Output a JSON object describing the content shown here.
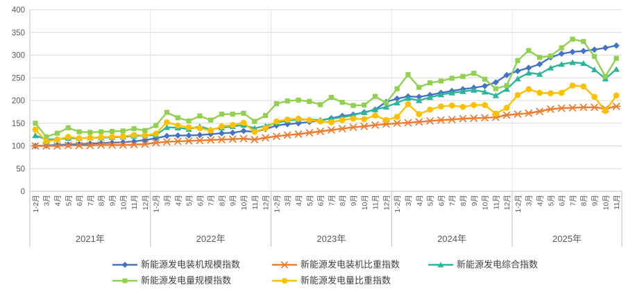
{
  "chart_data": {
    "type": "line",
    "title": "",
    "y_axis": {
      "min": 0,
      "max": 400,
      "step": 50,
      "ticks": [
        0,
        50,
        100,
        150,
        200,
        250,
        300,
        350,
        400
      ]
    },
    "x_axis": {
      "month_labels": [
        "1-2月",
        "3月",
        "4月",
        "5月",
        "6月",
        "7月",
        "8月",
        "9月",
        "10月",
        "11月",
        "12月",
        "1-2月",
        "3月",
        "4月",
        "5月",
        "6月",
        "7月",
        "8月",
        "9月",
        "10月",
        "11月",
        "12月",
        "1-2月",
        "3月",
        "4月",
        "5月",
        "6月",
        "7月",
        "8月",
        "9月",
        "10月",
        "11月",
        "12月",
        "1-2月",
        "3月",
        "4月",
        "5月",
        "6月",
        "7月",
        "8月",
        "9月",
        "10月",
        "11月",
        "12月",
        "1-2月",
        "3月",
        "4月",
        "5月",
        "6月",
        "7月",
        "8月",
        "9月",
        "10月",
        "11月"
      ],
      "year_groups": [
        {
          "label": "2021年",
          "months": 11
        },
        {
          "label": "2022年",
          "months": 11
        },
        {
          "label": "2023年",
          "months": 11
        },
        {
          "label": "2024年",
          "months": 11
        },
        {
          "label": "2025年",
          "months": 10
        }
      ]
    },
    "series": [
      {
        "name": "新能源发电装机规模指数",
        "color": "#4472C4",
        "marker": "diamond",
        "values": [
          100,
          101,
          102,
          103,
          104,
          105,
          106,
          107,
          108,
          110,
          113,
          117,
          122,
          123,
          123,
          124,
          126,
          128,
          129,
          133,
          131,
          137,
          145,
          148,
          150,
          153,
          156,
          161,
          166,
          169,
          174,
          180,
          197,
          204,
          209,
          208,
          212,
          217,
          221,
          225,
          228,
          232,
          240,
          256,
          265,
          272,
          280,
          295,
          303,
          307,
          309,
          312,
          316,
          321
        ]
      },
      {
        "name": "新能源发电装机比重指数",
        "color": "#ED7D31",
        "marker": "asterisk",
        "values": [
          100,
          100,
          100,
          101,
          101,
          101,
          102,
          102,
          102,
          103,
          104,
          107,
          109,
          110,
          111,
          112,
          113,
          114,
          115,
          116,
          114,
          118,
          121,
          124,
          126,
          129,
          132,
          135,
          138,
          141,
          143,
          146,
          148,
          150,
          151,
          153,
          155,
          157,
          158,
          160,
          161,
          162,
          163,
          168,
          170,
          172,
          176,
          181,
          183,
          184,
          185,
          185,
          182,
          187
        ]
      },
      {
        "name": "新能源发电综合指数",
        "color": "#2BB59A",
        "marker": "triangle",
        "values": [
          123,
          114,
          115,
          117,
          117,
          118,
          118,
          119,
          120,
          122,
          123,
          124,
          141,
          140,
          137,
          143,
          136,
          140,
          143,
          146,
          139,
          144,
          151,
          156,
          158,
          158,
          157,
          160,
          163,
          168,
          174,
          180,
          186,
          195,
          205,
          200,
          207,
          213,
          217,
          220,
          223,
          219,
          211,
          225,
          248,
          261,
          258,
          272,
          280,
          284,
          282,
          268,
          248,
          269
        ]
      },
      {
        "name": "新能源发电量规模指数",
        "color": "#92D050",
        "marker": "square",
        "values": [
          150,
          120,
          128,
          140,
          131,
          130,
          131,
          132,
          133,
          138,
          134,
          145,
          174,
          162,
          155,
          166,
          157,
          170,
          170,
          172,
          154,
          167,
          193,
          199,
          201,
          198,
          191,
          207,
          196,
          189,
          190,
          209,
          195,
          226,
          257,
          229,
          239,
          243,
          249,
          253,
          260,
          247,
          226,
          233,
          288,
          310,
          295,
          298,
          316,
          335,
          330,
          297,
          253,
          293
        ]
      },
      {
        "name": "新能源发电量比重指数",
        "color": "#FFC000",
        "marker": "circle",
        "values": [
          136,
          110,
          114,
          120,
          117,
          118,
          119,
          120,
          121,
          124,
          123,
          127,
          152,
          145,
          141,
          139,
          134,
          143,
          146,
          151,
          131,
          139,
          154,
          158,
          160,
          157,
          154,
          152,
          157,
          160,
          159,
          167,
          157,
          164,
          192,
          170,
          180,
          187,
          189,
          186,
          190,
          190,
          171,
          184,
          212,
          225,
          217,
          216,
          217,
          233,
          231,
          208,
          177,
          211
        ]
      }
    ],
    "legend": {
      "rows": [
        [
          0,
          1,
          2
        ],
        [
          3,
          4
        ]
      ]
    },
    "style": {
      "grid_color": "#D9D9D9",
      "axis_color": "#BFBFBF",
      "tick_text_color": "#595959",
      "legend_text_color": "#404040",
      "background": "#FFFFFF"
    }
  }
}
